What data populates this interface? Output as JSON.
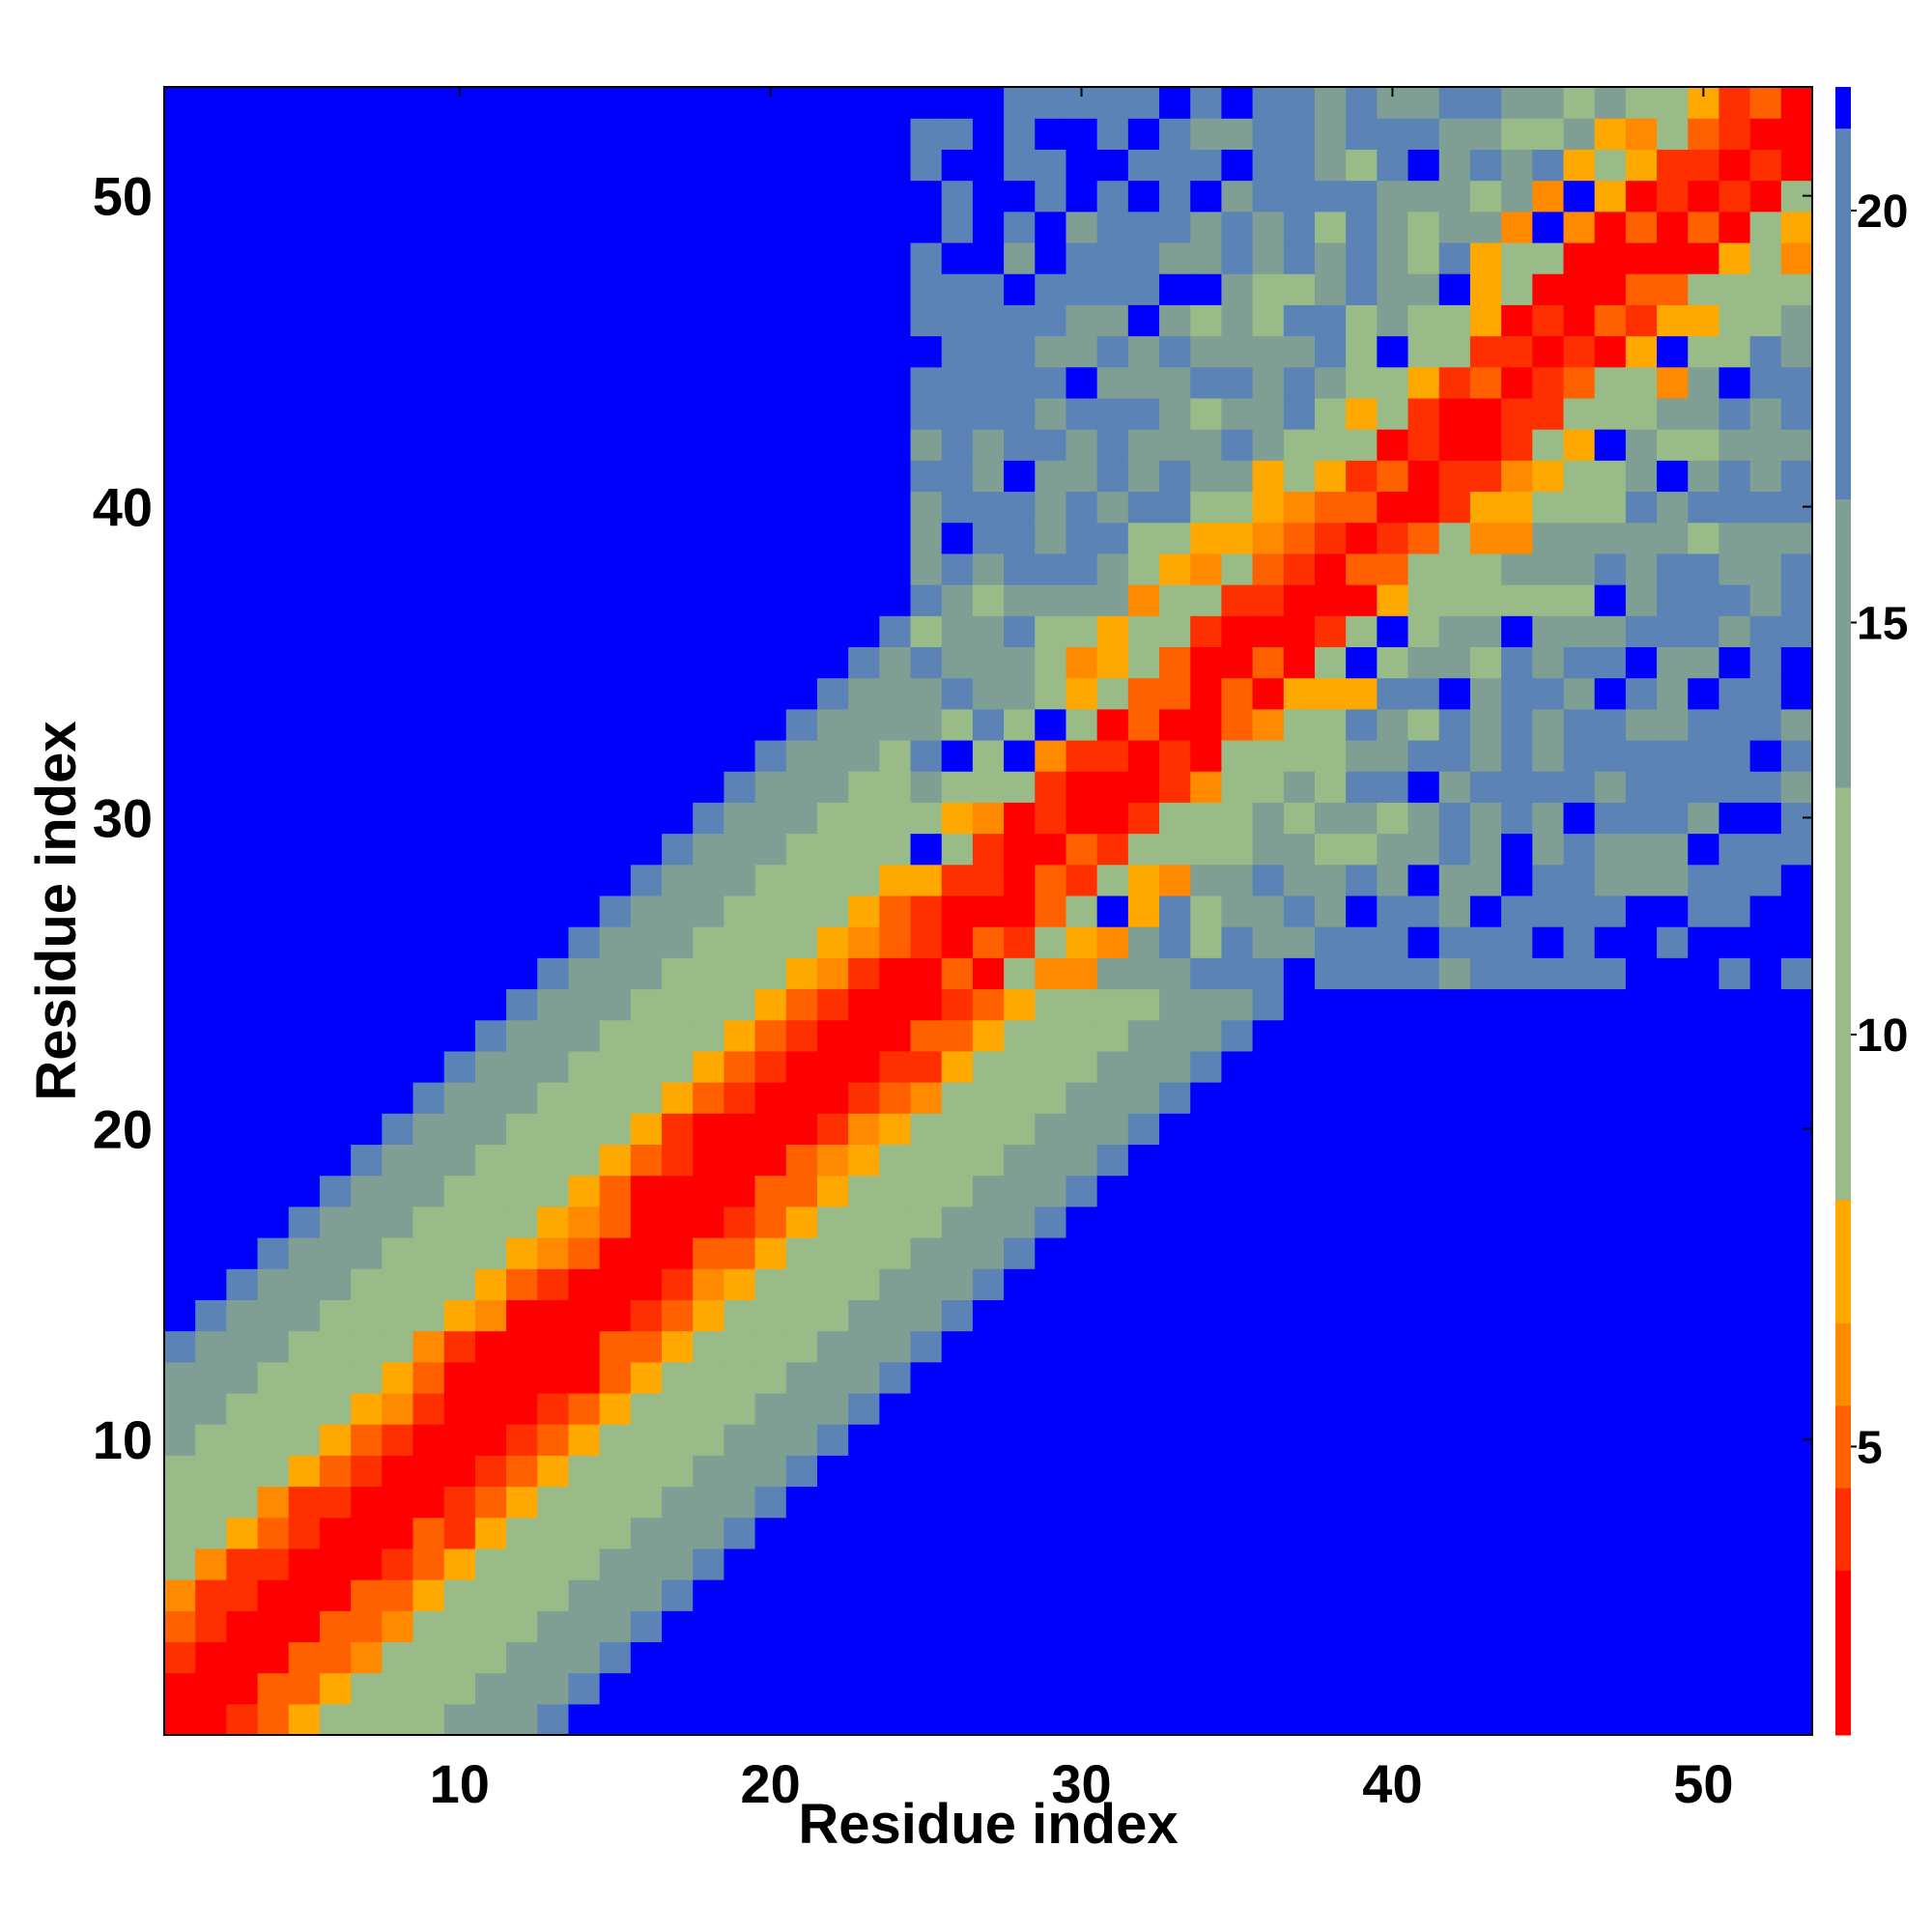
{
  "chart_data": {
    "type": "heatmap",
    "title": "",
    "xlabel": "Residue index",
    "ylabel": "Residue index",
    "n_residues": 53,
    "xlim": [
      0.5,
      53.5
    ],
    "ylim": [
      0.5,
      53.5
    ],
    "xticks": [
      10,
      20,
      30,
      40,
      50
    ],
    "yticks": [
      10,
      20,
      30,
      40,
      50
    ],
    "colorbar": {
      "range": [
        1.5,
        21.5
      ],
      "ticks": [
        5,
        10,
        15,
        20
      ],
      "colors": [
        "#ff0000",
        "#ff3000",
        "#ff6000",
        "#ff8a00",
        "#ffa800",
        "#99bb88",
        "#7f9f95",
        "#5b83b5",
        "#0000ff"
      ],
      "boundaries": [
        1.5,
        3.5,
        4.5,
        5.5,
        6.5,
        8.0,
        13.0,
        16.5,
        21.0,
        21.5
      ]
    },
    "matrix_description": "Mean inter-residue distance; values rise with |i - j| from ~1 on the diagonal to >21 (blue) far off the diagonal; broader spread in upper-right region (residues 25-53).",
    "diagonal_band": {
      "value_by_offset": [
        1,
        2,
        4,
        5,
        7,
        9,
        10,
        11,
        12,
        14,
        15,
        16,
        18,
        23
      ],
      "upper_region_start": 25
    }
  }
}
